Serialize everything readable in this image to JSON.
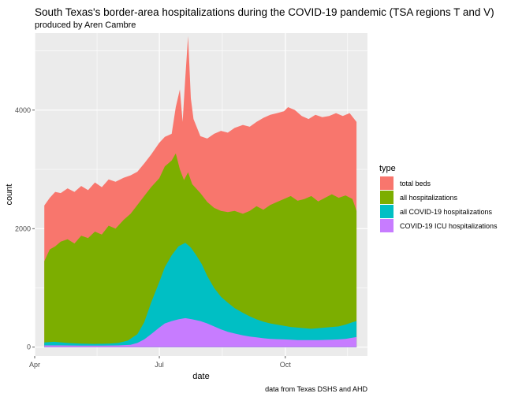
{
  "chart_data": {
    "type": "area",
    "stacked": false,
    "title": "South Texas's border-area hospitalizations during the COVID-19 pandemic (TSA regions T and V)",
    "subtitle": "produced by Aren Cambre",
    "caption": "data from Texas DSHS and AHD",
    "xlabel": "date",
    "ylabel": "count",
    "x_ticks": [
      "Apr",
      "Jul",
      "Oct"
    ],
    "x_tick_dates": [
      "2020-04-01",
      "2020-07-01",
      "2020-10-01"
    ],
    "xlim": [
      "2020-04-01",
      "2020-11-30"
    ],
    "y_ticks": [
      0,
      2000,
      4000
    ],
    "ylim": [
      -150,
      5300
    ],
    "grid": true,
    "legend_position": "right",
    "legend_title": "type",
    "series": [
      {
        "name": "total beds",
        "color": "#F8766D",
        "points": [
          [
            "2020-04-08",
            2390
          ],
          [
            "2020-04-12",
            2520
          ],
          [
            "2020-04-16",
            2620
          ],
          [
            "2020-04-20",
            2600
          ],
          [
            "2020-04-25",
            2680
          ],
          [
            "2020-04-30",
            2620
          ],
          [
            "2020-05-05",
            2720
          ],
          [
            "2020-05-10",
            2650
          ],
          [
            "2020-05-15",
            2780
          ],
          [
            "2020-05-20",
            2700
          ],
          [
            "2020-05-25",
            2830
          ],
          [
            "2020-05-30",
            2790
          ],
          [
            "2020-06-05",
            2860
          ],
          [
            "2020-06-10",
            2900
          ],
          [
            "2020-06-15",
            2960
          ],
          [
            "2020-06-20",
            3100
          ],
          [
            "2020-06-25",
            3250
          ],
          [
            "2020-07-01",
            3450
          ],
          [
            "2020-07-05",
            3550
          ],
          [
            "2020-07-10",
            3600
          ],
          [
            "2020-07-13",
            4050
          ],
          [
            "2020-07-16",
            4350
          ],
          [
            "2020-07-18",
            3800
          ],
          [
            "2020-07-20",
            4550
          ],
          [
            "2020-07-22",
            5250
          ],
          [
            "2020-07-24",
            4200
          ],
          [
            "2020-07-26",
            3850
          ],
          [
            "2020-07-31",
            3560
          ],
          [
            "2020-08-05",
            3520
          ],
          [
            "2020-08-10",
            3600
          ],
          [
            "2020-08-15",
            3650
          ],
          [
            "2020-08-20",
            3620
          ],
          [
            "2020-08-25",
            3700
          ],
          [
            "2020-08-31",
            3750
          ],
          [
            "2020-09-05",
            3720
          ],
          [
            "2020-09-10",
            3800
          ],
          [
            "2020-09-15",
            3870
          ],
          [
            "2020-09-20",
            3920
          ],
          [
            "2020-09-25",
            3950
          ],
          [
            "2020-09-30",
            3980
          ],
          [
            "2020-10-03",
            4050
          ],
          [
            "2020-10-08",
            4000
          ],
          [
            "2020-10-13",
            3900
          ],
          [
            "2020-10-18",
            3850
          ],
          [
            "2020-10-23",
            3920
          ],
          [
            "2020-10-28",
            3880
          ],
          [
            "2020-11-02",
            3900
          ],
          [
            "2020-11-07",
            3950
          ],
          [
            "2020-11-12",
            3900
          ],
          [
            "2020-11-17",
            3950
          ],
          [
            "2020-11-22",
            3800
          ]
        ]
      },
      {
        "name": "all hospitalizations",
        "color": "#7CAE00",
        "points": [
          [
            "2020-04-08",
            1450
          ],
          [
            "2020-04-12",
            1650
          ],
          [
            "2020-04-16",
            1700
          ],
          [
            "2020-04-20",
            1780
          ],
          [
            "2020-04-25",
            1820
          ],
          [
            "2020-04-30",
            1750
          ],
          [
            "2020-05-05",
            1880
          ],
          [
            "2020-05-10",
            1840
          ],
          [
            "2020-05-15",
            1950
          ],
          [
            "2020-05-20",
            1900
          ],
          [
            "2020-05-25",
            2050
          ],
          [
            "2020-05-30",
            2000
          ],
          [
            "2020-06-05",
            2150
          ],
          [
            "2020-06-10",
            2250
          ],
          [
            "2020-06-15",
            2400
          ],
          [
            "2020-06-20",
            2550
          ],
          [
            "2020-06-25",
            2700
          ],
          [
            "2020-07-01",
            2850
          ],
          [
            "2020-07-05",
            3050
          ],
          [
            "2020-07-10",
            3150
          ],
          [
            "2020-07-13",
            3270
          ],
          [
            "2020-07-16",
            3000
          ],
          [
            "2020-07-19",
            2820
          ],
          [
            "2020-07-22",
            2950
          ],
          [
            "2020-07-25",
            2750
          ],
          [
            "2020-07-31",
            2600
          ],
          [
            "2020-08-05",
            2450
          ],
          [
            "2020-08-10",
            2350
          ],
          [
            "2020-08-15",
            2300
          ],
          [
            "2020-08-20",
            2280
          ],
          [
            "2020-08-25",
            2300
          ],
          [
            "2020-08-31",
            2250
          ],
          [
            "2020-09-05",
            2300
          ],
          [
            "2020-09-10",
            2380
          ],
          [
            "2020-09-15",
            2320
          ],
          [
            "2020-09-20",
            2400
          ],
          [
            "2020-09-25",
            2450
          ],
          [
            "2020-09-30",
            2500
          ],
          [
            "2020-10-05",
            2550
          ],
          [
            "2020-10-10",
            2470
          ],
          [
            "2020-10-15",
            2500
          ],
          [
            "2020-10-20",
            2550
          ],
          [
            "2020-10-25",
            2460
          ],
          [
            "2020-10-30",
            2520
          ],
          [
            "2020-11-04",
            2580
          ],
          [
            "2020-11-09",
            2520
          ],
          [
            "2020-11-14",
            2560
          ],
          [
            "2020-11-19",
            2500
          ],
          [
            "2020-11-22",
            2300
          ]
        ]
      },
      {
        "name": "all COVID-19 hospitalizations",
        "color": "#00BFC4",
        "points": [
          [
            "2020-04-08",
            80
          ],
          [
            "2020-04-15",
            90
          ],
          [
            "2020-04-25",
            70
          ],
          [
            "2020-05-05",
            60
          ],
          [
            "2020-05-15",
            55
          ],
          [
            "2020-05-25",
            60
          ],
          [
            "2020-06-01",
            70
          ],
          [
            "2020-06-08",
            110
          ],
          [
            "2020-06-15",
            220
          ],
          [
            "2020-06-20",
            420
          ],
          [
            "2020-06-25",
            750
          ],
          [
            "2020-07-01",
            1100
          ],
          [
            "2020-07-05",
            1350
          ],
          [
            "2020-07-10",
            1550
          ],
          [
            "2020-07-15",
            1700
          ],
          [
            "2020-07-20",
            1760
          ],
          [
            "2020-07-24",
            1680
          ],
          [
            "2020-07-28",
            1550
          ],
          [
            "2020-08-01",
            1400
          ],
          [
            "2020-08-05",
            1200
          ],
          [
            "2020-08-10",
            1000
          ],
          [
            "2020-08-15",
            850
          ],
          [
            "2020-08-20",
            750
          ],
          [
            "2020-08-25",
            660
          ],
          [
            "2020-08-31",
            580
          ],
          [
            "2020-09-05",
            520
          ],
          [
            "2020-09-10",
            470
          ],
          [
            "2020-09-15",
            430
          ],
          [
            "2020-09-20",
            400
          ],
          [
            "2020-09-25",
            380
          ],
          [
            "2020-09-30",
            360
          ],
          [
            "2020-10-05",
            340
          ],
          [
            "2020-10-10",
            330
          ],
          [
            "2020-10-15",
            320
          ],
          [
            "2020-10-20",
            310
          ],
          [
            "2020-10-25",
            320
          ],
          [
            "2020-10-30",
            330
          ],
          [
            "2020-11-04",
            340
          ],
          [
            "2020-11-09",
            350
          ],
          [
            "2020-11-14",
            380
          ],
          [
            "2020-11-19",
            420
          ],
          [
            "2020-11-22",
            440
          ]
        ]
      },
      {
        "name": "COVID-19 ICU hospitalizations",
        "color": "#C77CFF",
        "points": [
          [
            "2020-04-08",
            30
          ],
          [
            "2020-04-20",
            30
          ],
          [
            "2020-05-05",
            25
          ],
          [
            "2020-05-20",
            25
          ],
          [
            "2020-06-01",
            30
          ],
          [
            "2020-06-10",
            40
          ],
          [
            "2020-06-15",
            70
          ],
          [
            "2020-06-20",
            130
          ],
          [
            "2020-06-25",
            220
          ],
          [
            "2020-07-01",
            330
          ],
          [
            "2020-07-05",
            400
          ],
          [
            "2020-07-10",
            440
          ],
          [
            "2020-07-15",
            470
          ],
          [
            "2020-07-20",
            490
          ],
          [
            "2020-07-25",
            470
          ],
          [
            "2020-07-31",
            440
          ],
          [
            "2020-08-05",
            400
          ],
          [
            "2020-08-10",
            350
          ],
          [
            "2020-08-15",
            300
          ],
          [
            "2020-08-20",
            260
          ],
          [
            "2020-08-25",
            230
          ],
          [
            "2020-08-31",
            200
          ],
          [
            "2020-09-05",
            180
          ],
          [
            "2020-09-10",
            165
          ],
          [
            "2020-09-15",
            150
          ],
          [
            "2020-09-20",
            140
          ],
          [
            "2020-09-25",
            135
          ],
          [
            "2020-09-30",
            130
          ],
          [
            "2020-10-05",
            125
          ],
          [
            "2020-10-10",
            120
          ],
          [
            "2020-10-15",
            118
          ],
          [
            "2020-10-20",
            118
          ],
          [
            "2020-10-25",
            120
          ],
          [
            "2020-10-30",
            122
          ],
          [
            "2020-11-04",
            125
          ],
          [
            "2020-11-09",
            130
          ],
          [
            "2020-11-14",
            140
          ],
          [
            "2020-11-19",
            160
          ],
          [
            "2020-11-22",
            170
          ]
        ]
      }
    ]
  }
}
